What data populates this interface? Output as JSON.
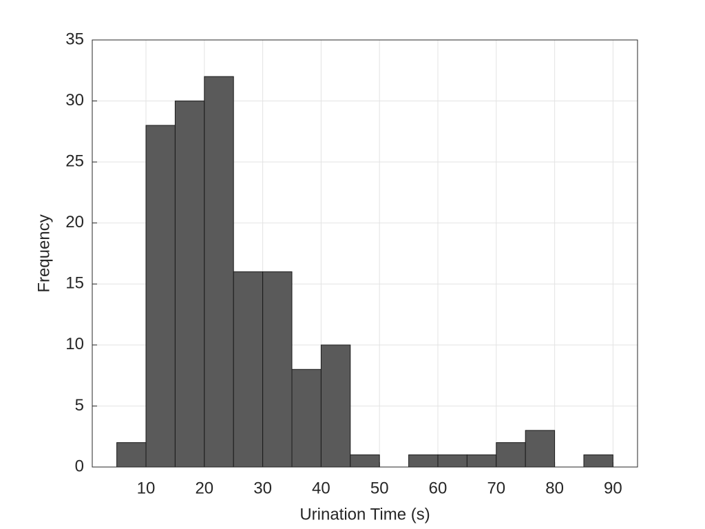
{
  "chart_data": {
    "type": "histogram",
    "xlabel": "Urination Time (s)",
    "ylabel": "Frequency",
    "bins": [
      5,
      10,
      15,
      20,
      25,
      30,
      35,
      40,
      45,
      50,
      55,
      60,
      65,
      70,
      75,
      80,
      85,
      90
    ],
    "values": [
      2,
      28,
      30,
      32,
      16,
      16,
      8,
      10,
      1,
      0,
      1,
      1,
      1,
      2,
      3,
      0,
      1
    ],
    "color": "#5a5a5a",
    "edgecolor": "#1a1a1a",
    "xlim": [
      0.8,
      94.2
    ],
    "xticks": [
      10,
      20,
      30,
      40,
      50,
      60,
      70,
      80,
      90
    ],
    "ylim": [
      0,
      35
    ],
    "yticks": [
      0,
      5,
      10,
      15,
      20,
      25,
      30,
      35
    ],
    "grid": true
  }
}
